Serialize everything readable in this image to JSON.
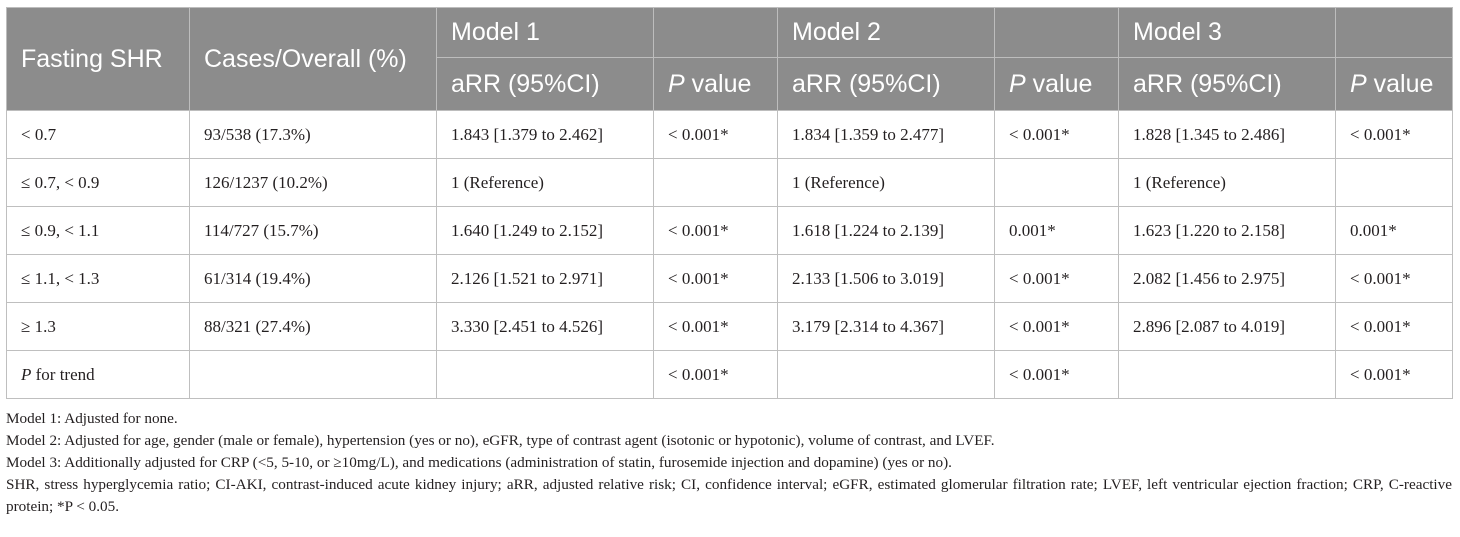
{
  "table": {
    "headers": {
      "row_label": "Fasting SHR",
      "cases": "Cases/Overall (%)",
      "models": [
        "Model 1",
        "Model 2",
        "Model 3"
      ],
      "arr": "aRR (95%CI)",
      "p_italic": "P",
      "p_rest": " value"
    },
    "rows": [
      {
        "label": "< 0.7",
        "cases": "93/538 (17.3%)",
        "m1_arr": "1.843 [1.379 to 2.462]",
        "m1_p": "< 0.001*",
        "m2_arr": "1.834 [1.359 to 2.477]",
        "m2_p": "< 0.001*",
        "m3_arr": "1.828 [1.345 to 2.486]",
        "m3_p": "< 0.001*"
      },
      {
        "label": "≤ 0.7, < 0.9",
        "cases": "126/1237 (10.2%)",
        "m1_arr": "1 (Reference)",
        "m1_p": "",
        "m2_arr": "1 (Reference)",
        "m2_p": "",
        "m3_arr": "1 (Reference)",
        "m3_p": ""
      },
      {
        "label": "≤ 0.9, < 1.1",
        "cases": "114/727 (15.7%)",
        "m1_arr": "1.640 [1.249 to 2.152]",
        "m1_p": "< 0.001*",
        "m2_arr": "1.618 [1.224 to 2.139]",
        "m2_p": "0.001*",
        "m3_arr": "1.623 [1.220 to 2.158]",
        "m3_p": "0.001*"
      },
      {
        "label": "≤ 1.1, < 1.3",
        "cases": "61/314 (19.4%)",
        "m1_arr": "2.126 [1.521 to 2.971]",
        "m1_p": "< 0.001*",
        "m2_arr": "2.133 [1.506 to 3.019]",
        "m2_p": "< 0.001*",
        "m3_arr": "2.082 [1.456 to 2.975]",
        "m3_p": "< 0.001*"
      },
      {
        "label": "≥ 1.3",
        "cases": "88/321 (27.4%)",
        "m1_arr": "3.330 [2.451 to 4.526]",
        "m1_p": "< 0.001*",
        "m2_arr": "3.179 [2.314 to 4.367]",
        "m2_p": "< 0.001*",
        "m3_arr": "2.896 [2.087 to 4.019]",
        "m3_p": "< 0.001*"
      }
    ],
    "trend_row": {
      "label_italic": "P",
      "label_rest": " for trend",
      "m1_p": "< 0.001*",
      "m2_p": "< 0.001*",
      "m3_p": "< 0.001*"
    }
  },
  "footnotes": [
    "Model 1: Adjusted for none.",
    "Model 2: Adjusted for age, gender (male or female), hypertension (yes or no), eGFR, type of contrast agent (isotonic or hypotonic), volume of contrast, and LVEF.",
    "Model 3: Additionally adjusted for CRP (<5, 5-10, or ≥10mg/L), and medications (administration of statin, furosemide injection and dopamine) (yes or no).",
    "SHR, stress hyperglycemia ratio; CI-AKI, contrast-induced acute kidney injury; aRR, adjusted relative risk; CI, confidence interval; eGFR, estimated glomerular filtration rate; LVEF, left ventricular ejection fraction; CRP, C-reactive protein; *P < 0.05."
  ],
  "colors": {
    "header_bg": "#8c8c8c",
    "header_text": "#ffffff",
    "border": "#bfbfbf",
    "body_text": "#231f20"
  }
}
